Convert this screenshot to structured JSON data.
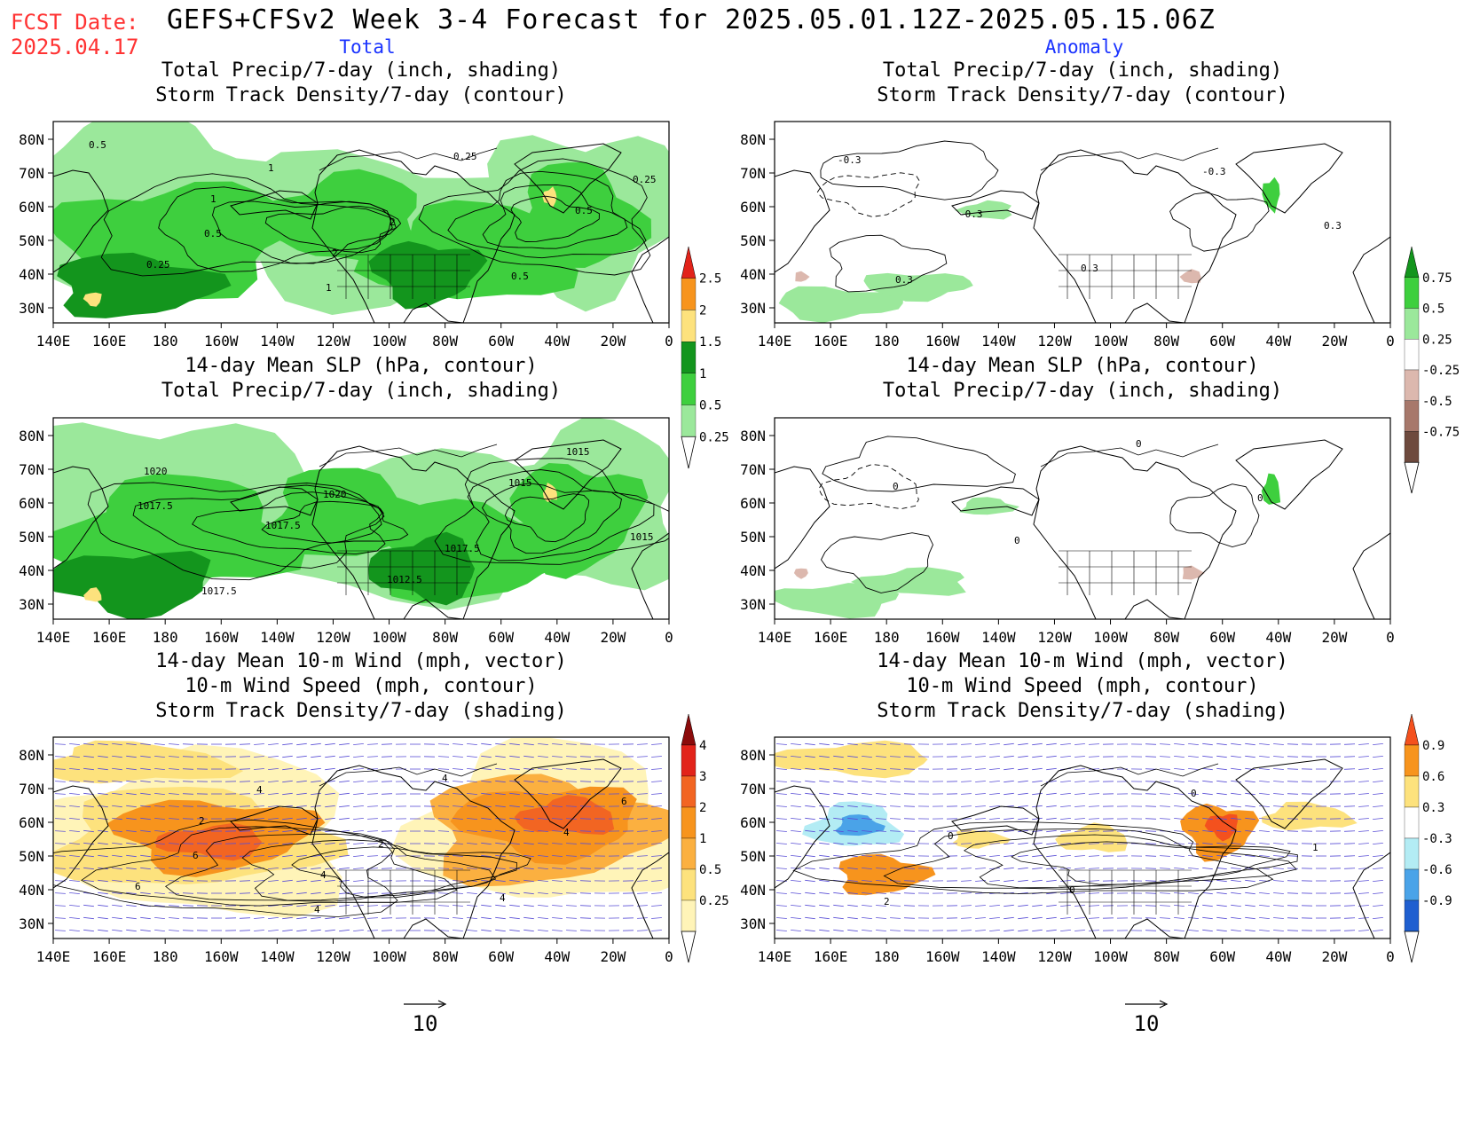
{
  "header": {
    "fcst_label": "FCST Date:",
    "fcst_date": "2025.04.17",
    "title": "GEFS+CFSv2 Week 3-4 Forecast for 2025.05.01.12Z-2025.05.15.06Z",
    "col_left": "Total",
    "col_right": "Anomaly"
  },
  "colors": {
    "red": "#ff3333",
    "blue": "#1a33ff",
    "text": "#000000",
    "vector": "#5a4fd6"
  },
  "lat_labels": [
    "80N",
    "70N",
    "60N",
    "50N",
    "40N",
    "30N"
  ],
  "lon_labels": [
    "140E",
    "160E",
    "180",
    "160W",
    "140W",
    "120W",
    "100W",
    "80W",
    "60W",
    "40W",
    "20W",
    "0"
  ],
  "panels": [
    {
      "id": "p1",
      "col": 0,
      "row": 0,
      "kind": "precip",
      "mode": "total",
      "title": [
        "Total Precip/7-day (inch, shading)",
        "Storm Track Density/7-day (contour)"
      ],
      "contour_labels": [
        "0.5",
        "1",
        "2",
        "0.25",
        "0.5",
        "0.25",
        "1",
        "2",
        "0.5",
        "0.25",
        "0.5",
        "1"
      ]
    },
    {
      "id": "p2",
      "col": 1,
      "row": 0,
      "kind": "precip",
      "mode": "anom",
      "title": [
        "Total Precip/7-day (inch, shading)",
        "Storm Track Density/7-day (contour)"
      ],
      "contour_labels": [
        "-0.3",
        "-0.3",
        "0.3",
        "-0.3",
        "0.3",
        "0.3"
      ]
    },
    {
      "id": "p3",
      "col": 0,
      "row": 1,
      "kind": "precip",
      "mode": "total",
      "title": [
        "14-day Mean SLP (hPa, contour)",
        "Total Precip/7-day (inch, shading)"
      ],
      "contour_labels": [
        "1020",
        "1017.5",
        "1012.5",
        "1015",
        "1015",
        "1017.5",
        "1020",
        "1017.5",
        "1015",
        "1017.5"
      ]
    },
    {
      "id": "p4",
      "col": 1,
      "row": 1,
      "kind": "precip",
      "mode": "anom",
      "title": [
        "14-day Mean SLP (hPa, contour)",
        "Total Precip/7-day (inch, shading)"
      ],
      "contour_labels": [
        "0",
        "0",
        "0",
        "0"
      ]
    },
    {
      "id": "p5",
      "col": 0,
      "row": 2,
      "kind": "storm",
      "mode": "total",
      "title": [
        "14-day Mean 10-m Wind (mph, vector)",
        "10-m Wind Speed (mph, contour)",
        "Storm Track Density/7-day (shading)"
      ],
      "contour_labels": [
        "2",
        "4",
        "4",
        "4",
        "6",
        "4",
        "2",
        "4",
        "6",
        "6",
        "4"
      ]
    },
    {
      "id": "p6",
      "col": 1,
      "row": 2,
      "kind": "storm",
      "mode": "anom",
      "title": [
        "14-day Mean 10-m Wind (mph, vector)",
        "10-m Wind Speed (mph, contour)",
        "Storm Track Density/7-day (shading)"
      ],
      "contour_labels": [
        "0",
        "0",
        "0",
        "1",
        "2"
      ]
    }
  ],
  "colorbars": [
    {
      "id": "cb1",
      "labels": [
        "2.5",
        "2",
        "1.5",
        "1",
        "0.5",
        "0.25"
      ],
      "colors": [
        "#e2231a",
        "#f7941d",
        "#fde27d",
        "#13951d",
        "#3ecf3e",
        "#9be89b"
      ]
    },
    {
      "id": "cb2",
      "labels": [
        "0.75",
        "0.5",
        "0.25",
        "-0.25",
        "-0.5",
        "-0.75"
      ],
      "colors": [
        "#13951d",
        "#3ecf3e",
        "#9be89b",
        "#ffffff",
        "#dcb8ae",
        "#a7786b",
        "#6e4a3e"
      ]
    },
    {
      "id": "cb3",
      "labels": [
        "4",
        "3",
        "2",
        "1",
        "0.5",
        "0.25"
      ],
      "colors": [
        "#8b0b0b",
        "#e2231a",
        "#f26522",
        "#f7941d",
        "#fbb040",
        "#fde27d",
        "#fff4b8"
      ]
    },
    {
      "id": "cb4",
      "labels": [
        "0.9",
        "0.6",
        "0.3",
        "-0.3",
        "-0.6",
        "-0.9"
      ],
      "colors": [
        "#f4511e",
        "#f7941d",
        "#fde27d",
        "#ffffff",
        "#b3ecf4",
        "#4aa3e8",
        "#1f5fd0"
      ]
    }
  ],
  "ref_vector": {
    "label": "10"
  }
}
